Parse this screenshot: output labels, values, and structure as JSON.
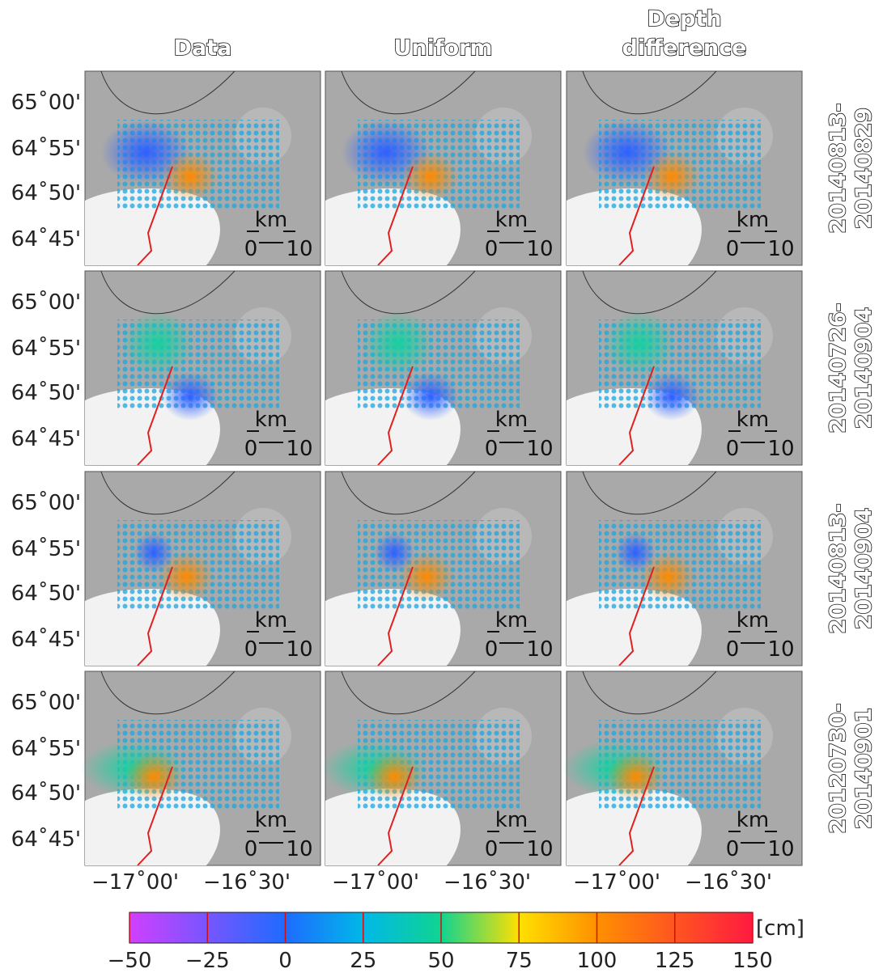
{
  "columns": [
    "Data",
    "Uniform",
    "Depth",
    "difference"
  ],
  "rows": [
    [
      "20140813-",
      "20140829"
    ],
    [
      "20140726-",
      "20140904"
    ],
    [
      "20140813-",
      "20140904"
    ],
    [
      "20120730-",
      "20140901"
    ]
  ],
  "latitude_labels": [
    "65˚00'",
    "64˚55'",
    "64˚50'",
    "64˚45'"
  ],
  "longitude_labels": [
    "−17˚00'",
    "−16˚30'"
  ],
  "scale_bar": {
    "unit": "km",
    "labels": [
      "0",
      "10"
    ]
  },
  "colorbar": {
    "label": "[cm]",
    "lim": [
      -50,
      150
    ],
    "ticks": [
      {
        "value": -50,
        "label": "−50"
      },
      {
        "value": -25,
        "label": "−25"
      },
      0,
      25,
      50,
      75,
      100,
      125,
      150
    ]
  }
}
